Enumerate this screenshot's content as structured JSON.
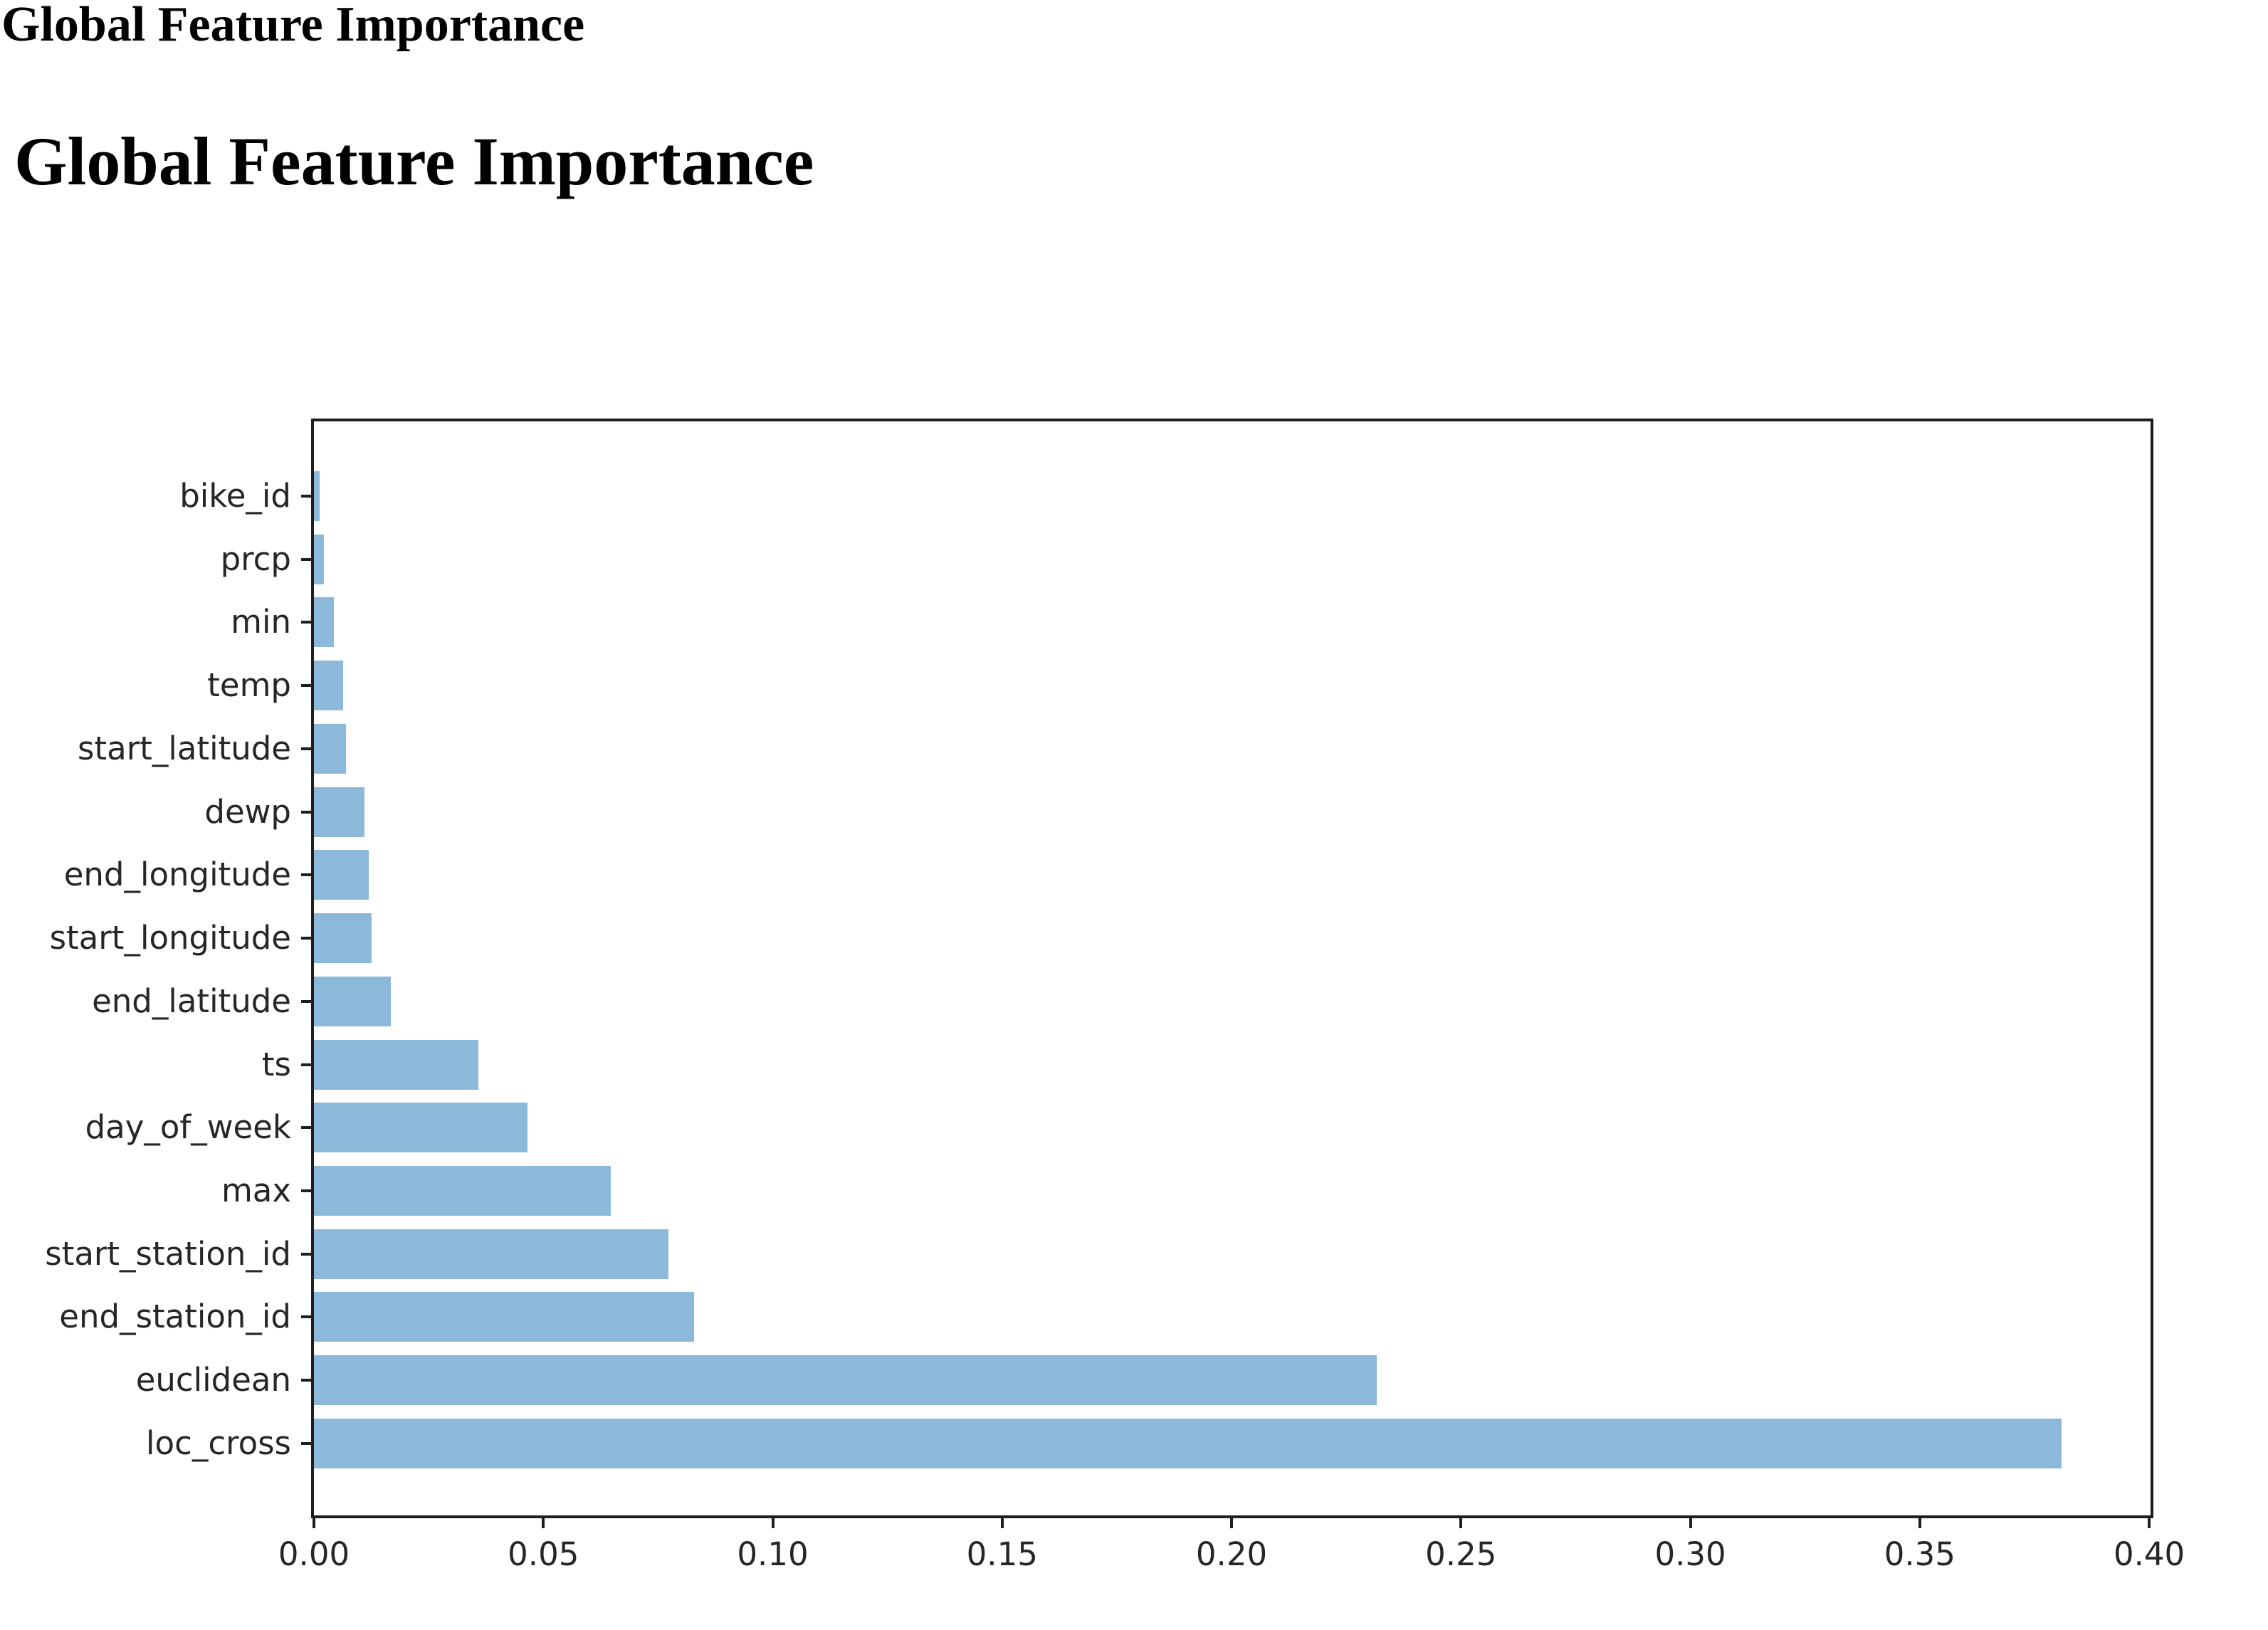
{
  "page": {
    "header_small": "Global Feature Importance",
    "header_large": "Global Feature Importance"
  },
  "chart_data": {
    "type": "bar",
    "orientation": "horizontal",
    "title": "Global Feature Importance",
    "xlabel": "",
    "ylabel": "",
    "grid": false,
    "legend": null,
    "xlim": [
      0,
      0.4003
    ],
    "categories": [
      "bike_id",
      "prcp",
      "min",
      "temp",
      "start_latitude",
      "dewp",
      "end_longitude",
      "start_longitude",
      "end_latitude",
      "ts",
      "day_of_week",
      "max",
      "start_station_id",
      "end_station_id",
      "euclidean",
      "loc_cross"
    ],
    "values": [
      0.0013,
      0.0022,
      0.0044,
      0.0064,
      0.007,
      0.011,
      0.012,
      0.0126,
      0.0168,
      0.0358,
      0.0466,
      0.0647,
      0.0772,
      0.0829,
      0.2316,
      0.3809
    ],
    "x_tick_labels": [
      "0.00",
      "0.05",
      "0.10",
      "0.15",
      "0.20",
      "0.25",
      "0.30",
      "0.35",
      "0.40"
    ],
    "x_tick_values": [
      0.0,
      0.05,
      0.1,
      0.15,
      0.2,
      0.25,
      0.3,
      0.35,
      0.4
    ]
  },
  "colors": {
    "bar": "#8CB9DA",
    "spine": "#1e1e1e",
    "tick_text": "#262626",
    "heading_text": "#000000"
  }
}
